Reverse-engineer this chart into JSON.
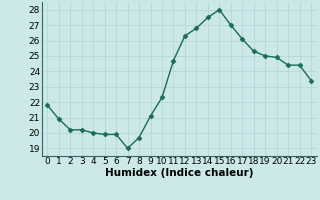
{
  "x": [
    0,
    1,
    2,
    3,
    4,
    5,
    6,
    7,
    8,
    9,
    10,
    11,
    12,
    13,
    14,
    15,
    16,
    17,
    18,
    19,
    20,
    21,
    22,
    23
  ],
  "y": [
    21.8,
    20.9,
    20.2,
    20.2,
    20.0,
    19.9,
    19.9,
    19.0,
    19.7,
    21.1,
    22.3,
    24.7,
    26.3,
    26.8,
    27.5,
    28.0,
    27.0,
    26.1,
    25.3,
    25.0,
    24.9,
    24.4,
    24.4,
    23.4
  ],
  "line_color": "#1a6b5a",
  "marker": "D",
  "markersize": 2.5,
  "linewidth": 1.0,
  "bg_color": "#cce8e8",
  "grid_color": "#b0d4d4",
  "xlabel": "Humidex (Indice chaleur)",
  "xlim": [
    -0.5,
    23.5
  ],
  "ylim": [
    18.5,
    28.5
  ],
  "yticks": [
    19,
    20,
    21,
    22,
    23,
    24,
    25,
    26,
    27,
    28
  ],
  "xticks": [
    0,
    1,
    2,
    3,
    4,
    5,
    6,
    7,
    8,
    9,
    10,
    11,
    12,
    13,
    14,
    15,
    16,
    17,
    18,
    19,
    20,
    21,
    22,
    23
  ],
  "xlabel_fontsize": 7.5,
  "tick_fontsize": 6.5
}
